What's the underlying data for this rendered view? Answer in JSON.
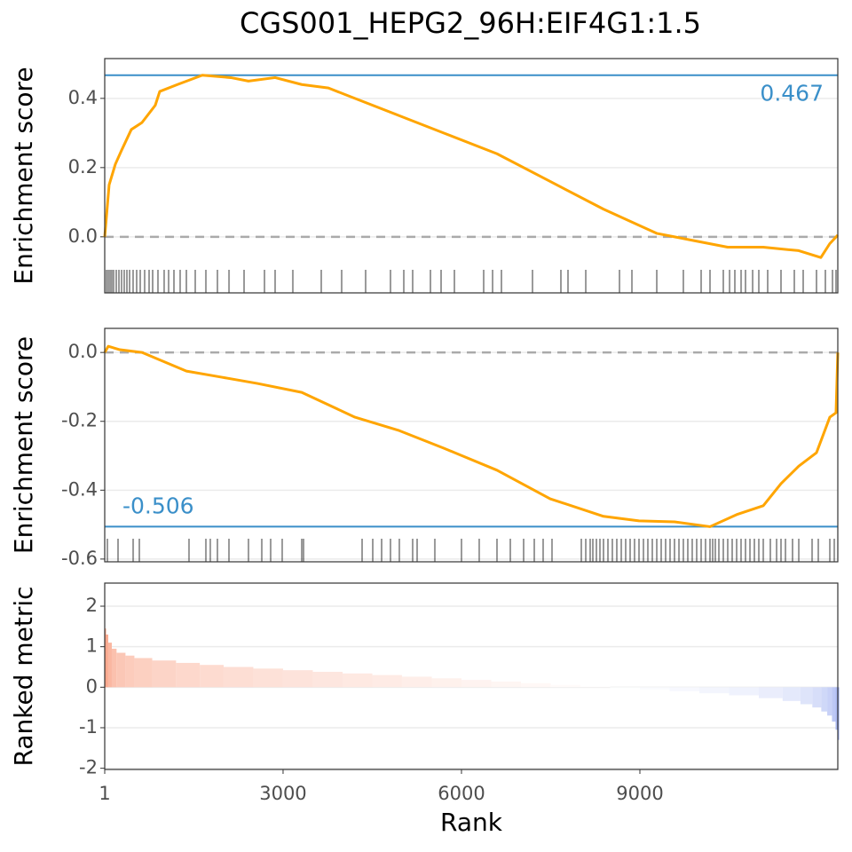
{
  "title": "CGS001_HEPG2_96H:EIF4G1:1.5",
  "chart_data": [
    {
      "type": "line",
      "ylabel": "Enrichment score",
      "xlim": [
        1,
        12328
      ],
      "ylim": [
        -0.162,
        0.515
      ],
      "yticks": [
        {
          "value": 0,
          "label": "0.0"
        },
        0.2,
        0.4
      ],
      "grid": true,
      "x": [
        1,
        75,
        180,
        284,
        448,
        627,
        851,
        926,
        1224,
        1642,
        2120,
        2418,
        2866,
        3314,
        3762,
        4209,
        4955,
        5701,
        6597,
        7492,
        8387,
        9282,
        9879,
        10476,
        11073,
        11670,
        12043,
        12192,
        12328
      ],
      "series": [
        {
          "color": "#FFA500",
          "values": [
            0,
            0.15,
            0.21,
            0.25,
            0.31,
            0.33,
            0.38,
            0.42,
            0.44,
            0.467,
            0.46,
            0.45,
            0.46,
            0.44,
            0.43,
            0.4,
            0.35,
            0.3,
            0.24,
            0.16,
            0.08,
            0.01,
            -0.01,
            -0.03,
            -0.03,
            -0.04,
            -0.06,
            -0.02,
            0.005
          ]
        }
      ],
      "hits": [
        31,
        61,
        91,
        120,
        150,
        195,
        240,
        284,
        329,
        374,
        419,
        478,
        538,
        598,
        672,
        747,
        807,
        896,
        1000,
        1075,
        1165,
        1269,
        1374,
        1523,
        1702,
        1896,
        2091,
        2344,
        2687,
        2866,
        3164,
        3642,
        3985,
        4388,
        4806,
        5030,
        5179,
        5478,
        5657,
        5881,
        6373,
        6523,
        6672,
        7194,
        7672,
        7791,
        8090,
        8657,
        8866,
        9284,
        9731,
        10030,
        10179,
        10403,
        10508,
        10597,
        10702,
        10776,
        10896,
        11000,
        11149,
        11373,
        11597,
        11746,
        11970,
        12119,
        12239,
        12298
      ],
      "es": 0.467,
      "es_color": "#3a8fc9"
    },
    {
      "type": "line",
      "ylabel": "Enrichment score",
      "xlim": [
        1,
        12328
      ],
      "ylim": [
        -0.608,
        0.07
      ],
      "yticks": [
        {
          "value": 0,
          "label": "0.0"
        },
        -0.2,
        -0.4,
        -0.6
      ],
      "grid": true,
      "x": [
        1,
        61,
        255,
        628,
        1374,
        1971,
        2568,
        3314,
        4209,
        4955,
        5702,
        6597,
        7492,
        8388,
        8985,
        9582,
        10179,
        10627,
        11075,
        11373,
        11672,
        11970,
        12194,
        12298,
        12328
      ],
      "series": [
        {
          "color": "#FFA500",
          "values": [
            0,
            0.018,
            0.008,
            0,
            -0.054,
            -0.072,
            -0.09,
            -0.116,
            -0.188,
            -0.227,
            -0.278,
            -0.342,
            -0.425,
            -0.476,
            -0.489,
            -0.492,
            -0.506,
            -0.471,
            -0.445,
            -0.381,
            -0.33,
            -0.291,
            -0.188,
            -0.175,
            0
          ]
        }
      ],
      "hits": [
        46,
        225,
        479,
        583,
        1418,
        1702,
        1776,
        1896,
        2090,
        2418,
        2642,
        2791,
        2985,
        3314,
        3344,
        4329,
        4508,
        4657,
        4806,
        4955,
        5179,
        5254,
        5552,
        6000,
        6298,
        6597,
        6821,
        7045,
        7224,
        7373,
        7522,
        8015,
        8090,
        8164,
        8209,
        8269,
        8328,
        8388,
        8463,
        8537,
        8612,
        8687,
        8761,
        8836,
        8910,
        8985,
        9060,
        9134,
        9209,
        9284,
        9358,
        9433,
        9507,
        9582,
        9657,
        9731,
        9806,
        9880,
        9955,
        10030,
        10104,
        10179,
        10224,
        10268,
        10328,
        10403,
        10477,
        10552,
        10627,
        10701,
        10776,
        10851,
        10925,
        11000,
        11075,
        11194,
        11299,
        11373,
        11448,
        11567,
        11672,
        11896,
        12000,
        12194,
        12269
      ],
      "es": -0.506,
      "es_color": "#3a8fc9"
    },
    {
      "type": "bar",
      "ylabel": "Ranked metric",
      "xlabel": "Rank",
      "xlim": [
        1,
        12328
      ],
      "ylim": [
        -2.03,
        2.57
      ],
      "yticks": [
        2,
        1,
        0,
        -1,
        -2
      ],
      "xticks": [
        1,
        3000,
        6000,
        9000
      ],
      "grid": true,
      "pos_color": "#f9a083",
      "neg_color": "#98aaf0",
      "x": [
        1,
        20,
        60,
        120,
        200,
        350,
        500,
        800,
        1200,
        1600,
        2000,
        2500,
        3000,
        3500,
        4000,
        4500,
        5000,
        5500,
        6000,
        6500,
        7000,
        7500,
        8000,
        8500,
        9000,
        9500,
        10000,
        10500,
        11000,
        11400,
        11700,
        11900,
        12050,
        12150,
        12230,
        12290,
        12328
      ],
      "values": [
        1.45,
        1.3,
        1.1,
        0.95,
        0.85,
        0.78,
        0.72,
        0.66,
        0.6,
        0.55,
        0.5,
        0.46,
        0.42,
        0.38,
        0.34,
        0.3,
        0.26,
        0.22,
        0.18,
        0.14,
        0.1,
        0.06,
        0.02,
        -0.02,
        -0.06,
        -0.1,
        -0.15,
        -0.2,
        -0.27,
        -0.34,
        -0.42,
        -0.5,
        -0.6,
        -0.7,
        -0.85,
        -1.05,
        -1.3
      ]
    }
  ]
}
